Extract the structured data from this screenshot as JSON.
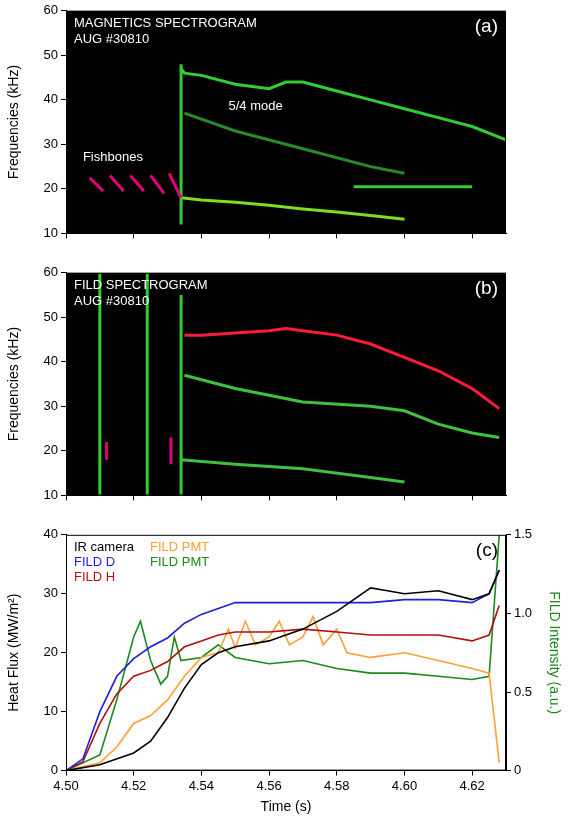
{
  "chart_data": [
    {
      "type": "spectrogram",
      "title": "MAGNETICS SPECTROGRAM",
      "subtitle": "AUG #30810",
      "panel": "(a)",
      "y_label": "Frequencies (kHz)",
      "xlim": [
        4.5,
        4.63
      ],
      "xticks": [
        {
          "value": 4.5,
          "label": "4.50"
        },
        4.52,
        4.54,
        4.56,
        4.58,
        {
          "value": 4.6,
          "label": "4.60"
        },
        4.62
      ],
      "ylim": [
        10,
        60
      ],
      "yticks": [
        10,
        20,
        30,
        40,
        50,
        60
      ],
      "grid": false,
      "tick_labels": "y",
      "annotations": [
        {
          "text": "Fishbones",
          "x": 4.505,
          "y": 27
        },
        {
          "text": "5/4 mode",
          "x": 4.548,
          "y": 38.5
        }
      ],
      "series": [
        {
          "color": "#e0007a",
          "x": [
            4.507,
            4.511,
            4.512,
            4.513,
            4.517,
            4.518,
            4.519,
            4.523,
            4.524,
            4.525,
            4.529,
            4.5295,
            4.5305,
            4.534
          ],
          "values": [
            22.5,
            19.5,
            null,
            23,
            19.5,
            null,
            23,
            19.5,
            null,
            23,
            19,
            null,
            23.5,
            18
          ]
        },
        {
          "color": "#33cc33",
          "x": [
            4.534,
            4.534
          ],
          "values": [
            12,
            48
          ]
        },
        {
          "color": "#7fdd20",
          "x": [
            4.534,
            4.54,
            4.55,
            4.56,
            4.57,
            4.58,
            4.59,
            4.6
          ],
          "values": [
            18,
            17.5,
            17,
            16.3,
            15.5,
            14.8,
            14,
            13.2
          ]
        },
        {
          "color": "#33cc33",
          "x": [
            4.534,
            4.535,
            4.54,
            4.55,
            4.56,
            4.565,
            4.57,
            4.58,
            4.59,
            4.6,
            4.61,
            4.62,
            4.63
          ],
          "values": [
            47,
            46,
            45.5,
            43.5,
            42.5,
            44,
            44,
            42,
            40,
            38,
            36,
            34,
            31
          ]
        },
        {
          "color": "#2a8a2a",
          "x": [
            4.535,
            4.55,
            4.57,
            4.59,
            4.6
          ],
          "values": [
            37,
            33,
            29,
            25,
            23.5
          ]
        },
        {
          "color": "#33cc33",
          "x": [
            4.585,
            4.6,
            4.62
          ],
          "values": [
            20.5,
            20.5,
            20.5
          ]
        }
      ]
    },
    {
      "type": "spectrogram",
      "title": "FILD SPECTROGRAM",
      "subtitle": "AUG #30810",
      "panel": "(b)",
      "y_label": "Frequencies (kHz)",
      "xlim": [
        4.5,
        4.63
      ],
      "xticks": [
        {
          "value": 4.5,
          "label": "4.50"
        },
        4.52,
        4.54,
        4.56,
        4.58,
        {
          "value": 4.6,
          "label": "4.60"
        },
        4.62
      ],
      "ylim": [
        10,
        60
      ],
      "yticks": [
        10,
        20,
        30,
        40,
        50,
        60
      ],
      "grid": false,
      "tick_labels": "y",
      "series": [
        {
          "color": "#33cc33",
          "x": [
            4.51,
            4.51,
            4.511,
            4.524,
            4.524,
            4.525,
            4.534,
            4.534
          ],
          "values": [
            10,
            60,
            null,
            10,
            60,
            null,
            10,
            55
          ]
        },
        {
          "color": "#e0007a",
          "x": [
            4.512,
            4.512,
            4.513,
            4.531,
            4.531
          ],
          "values": [
            18,
            22,
            null,
            17,
            23
          ]
        },
        {
          "color": "#ff1a3c",
          "x": [
            4.535,
            4.54,
            4.55,
            4.56,
            4.565,
            4.57,
            4.58,
            4.59,
            4.6,
            4.61,
            4.62,
            4.628
          ],
          "values": [
            46,
            46,
            46.5,
            47,
            47.5,
            47,
            46,
            44,
            41,
            38,
            34,
            29.5
          ]
        },
        {
          "color": "#40c040",
          "x": [
            4.535,
            4.55,
            4.57,
            4.59,
            4.6,
            4.61,
            4.62,
            4.628
          ],
          "values": [
            37,
            34,
            31,
            30,
            29,
            26,
            24,
            23
          ]
        },
        {
          "color": "#40c040",
          "x": [
            4.534,
            4.55,
            4.57,
            4.59,
            4.6
          ],
          "values": [
            18,
            17,
            16,
            14,
            13
          ]
        }
      ]
    },
    {
      "type": "line",
      "panel": "(c)",
      "x_label": "Time (s)",
      "y_label": "Heat Flux (MW/m²)",
      "y2_label": "FILD Intensity (a.u.)",
      "xlim": [
        4.5,
        4.63
      ],
      "xticks": [
        {
          "value": 4.5,
          "label": "4.50"
        },
        4.52,
        4.54,
        4.56,
        4.58,
        {
          "value": 4.6,
          "label": "4.60"
        },
        4.62
      ],
      "ylim": [
        0,
        40
      ],
      "yticks": [
        0,
        10,
        20,
        30,
        40
      ],
      "y2lim": [
        0,
        1.5
      ],
      "y2ticks": [
        0,
        0.5,
        {
          "value": 1,
          "label": "1.0"
        },
        1.5
      ],
      "grid": false,
      "legend": "upper left",
      "series": [
        {
          "name": "IR camera",
          "color": "#000000",
          "x": [
            4.5,
            4.51,
            4.52,
            4.525,
            4.53,
            4.535,
            4.54,
            4.545,
            4.55,
            4.56,
            4.57,
            4.58,
            4.59,
            4.595,
            4.6,
            4.61,
            4.62,
            4.625,
            4.628
          ],
          "values": [
            0,
            1,
            3,
            5,
            9,
            14,
            18,
            20,
            21,
            22,
            24,
            27,
            31,
            30.5,
            30,
            30.5,
            29,
            30,
            34
          ]
        },
        {
          "name": "FILD D",
          "color": "#1f1fe0",
          "x": [
            4.5,
            4.505,
            4.51,
            4.515,
            4.52,
            4.525,
            4.53,
            4.535,
            4.54,
            4.545,
            4.55,
            4.56,
            4.57,
            4.58,
            4.59,
            4.6,
            4.61,
            4.62,
            4.625,
            4.628
          ],
          "values": [
            0,
            2,
            10,
            16,
            19,
            21,
            22.5,
            25,
            26.5,
            27.5,
            28.5,
            28.5,
            28.5,
            28.5,
            28.5,
            29,
            29,
            28.5,
            30,
            34
          ]
        },
        {
          "name": "FILD H",
          "color": "#b01010",
          "x": [
            4.5,
            4.505,
            4.51,
            4.515,
            4.52,
            4.525,
            4.53,
            4.535,
            4.54,
            4.545,
            4.55,
            4.56,
            4.57,
            4.58,
            4.59,
            4.6,
            4.61,
            4.62,
            4.625,
            4.628
          ],
          "values": [
            0,
            1.5,
            8,
            13,
            16,
            17,
            18.5,
            21,
            22,
            23,
            23.5,
            23.5,
            24,
            23.5,
            23,
            23,
            23,
            22,
            23,
            28
          ]
        },
        {
          "name": "FILD PMT",
          "color": "#ffa033",
          "axis": "y2",
          "x": [
            4.5,
            4.51,
            4.515,
            4.52,
            4.525,
            4.53,
            4.535,
            4.54,
            4.545,
            4.548,
            4.55,
            4.553,
            4.556,
            4.56,
            4.563,
            4.566,
            4.57,
            4.573,
            4.576,
            4.58,
            4.583,
            4.59,
            4.6,
            4.61,
            4.62,
            4.625,
            4.628
          ],
          "values": [
            0,
            0.05,
            0.15,
            0.3,
            0.35,
            0.45,
            0.6,
            0.72,
            0.75,
            0.9,
            0.78,
            0.95,
            0.8,
            0.85,
            0.95,
            0.8,
            0.85,
            0.98,
            0.8,
            0.9,
            0.75,
            0.72,
            0.75,
            0.7,
            0.65,
            0.62,
            0.05
          ]
        },
        {
          "name": "FILD PMT",
          "color": "#1a8a1a",
          "axis": "y2",
          "x": [
            4.5,
            4.51,
            4.515,
            4.52,
            4.522,
            4.525,
            4.528,
            4.53,
            4.532,
            4.534,
            4.54,
            4.545,
            4.55,
            4.56,
            4.57,
            4.58,
            4.59,
            4.6,
            4.61,
            4.62,
            4.625,
            4.628
          ],
          "values": [
            0,
            0.1,
            0.45,
            0.85,
            0.95,
            0.7,
            0.55,
            0.6,
            0.85,
            0.7,
            0.72,
            0.8,
            0.72,
            0.68,
            0.7,
            0.65,
            0.62,
            0.62,
            0.6,
            0.58,
            0.6,
            1.5
          ]
        }
      ]
    }
  ]
}
